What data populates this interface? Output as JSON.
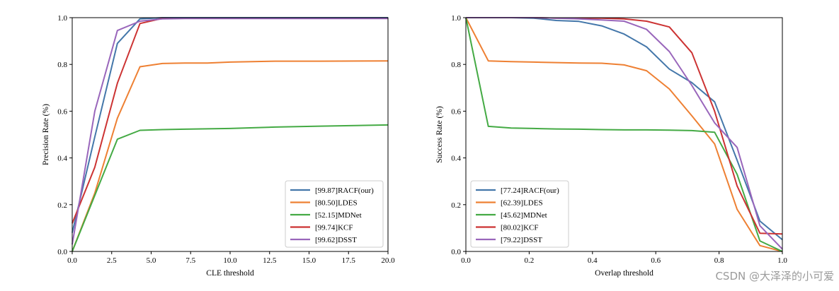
{
  "chart_data": [
    {
      "type": "line",
      "title": "",
      "xlabel": "CLE threshold",
      "ylabel": "Precision Rate (%)",
      "xlim": [
        0,
        20
      ],
      "ylim": [
        0,
        1.0
      ],
      "xticks": [
        "0.0",
        "2.5",
        "5.0",
        "7.5",
        "10.0",
        "12.5",
        "15.0",
        "17.5",
        "20.0"
      ],
      "yticks": [
        "0.0",
        "0.2",
        "0.4",
        "0.6",
        "0.8",
        "1.0"
      ],
      "legend_position": "lower-right",
      "series": [
        {
          "name": "[99.87]RACF(our)",
          "color": "#4477aa",
          "x": [
            0,
            1.43,
            2.86,
            4.29,
            5.71,
            7.14,
            8.57,
            10,
            12.86,
            15.71,
            20
          ],
          "y": [
            0.08,
            0.49,
            0.89,
            0.995,
            1.0,
            1.0,
            1.0,
            1.0,
            1.0,
            1.0,
            1.0
          ]
        },
        {
          "name": "[80.50]LDES",
          "color": "#ee8033",
          "x": [
            0,
            1.43,
            2.86,
            4.29,
            5.71,
            7.14,
            8.57,
            10,
            11.43,
            12.86,
            15.71,
            20
          ],
          "y": [
            0.0,
            0.25,
            0.57,
            0.79,
            0.804,
            0.806,
            0.806,
            0.81,
            0.812,
            0.814,
            0.814,
            0.815
          ]
        },
        {
          "name": "[52.15]MDNet",
          "color": "#44aa44",
          "x": [
            0,
            1.43,
            2.86,
            4.29,
            5.71,
            7.14,
            10,
            12.86,
            15.71,
            20
          ],
          "y": [
            0.0,
            0.24,
            0.48,
            0.518,
            0.521,
            0.523,
            0.526,
            0.532,
            0.536,
            0.541
          ]
        },
        {
          "name": "[99.74]KCF",
          "color": "#cc3333",
          "x": [
            0,
            1.43,
            2.86,
            4.29,
            5.71,
            7.14,
            10,
            20
          ],
          "y": [
            0.12,
            0.36,
            0.72,
            0.975,
            0.997,
            0.998,
            0.998,
            0.998
          ]
        },
        {
          "name": "[99.62]DSST",
          "color": "#9966bb",
          "x": [
            0,
            1.43,
            2.86,
            4.29,
            5.71,
            7.14,
            10,
            20
          ],
          "y": [
            0.03,
            0.6,
            0.945,
            0.985,
            0.995,
            0.996,
            0.996,
            0.996
          ]
        }
      ]
    },
    {
      "type": "line",
      "title": "",
      "xlabel": "Overlap threshold",
      "ylabel": "Success Rate (%)",
      "xlim": [
        0,
        1.0
      ],
      "ylim": [
        0,
        1.0
      ],
      "xticks": [
        "0.0",
        "0.2",
        "0.4",
        "0.6",
        "0.8",
        "1.0"
      ],
      "yticks": [
        "0.0",
        "0.2",
        "0.4",
        "0.6",
        "0.8",
        "1.0"
      ],
      "legend_position": "lower-left",
      "series": [
        {
          "name": "[77.24]RACF(our)",
          "color": "#4477aa",
          "x": [
            0,
            0.071,
            0.143,
            0.214,
            0.286,
            0.357,
            0.429,
            0.5,
            0.571,
            0.643,
            0.714,
            0.786,
            0.857,
            0.929,
            1.0
          ],
          "y": [
            1.0,
            1.0,
            1.0,
            0.998,
            0.988,
            0.984,
            0.965,
            0.93,
            0.875,
            0.78,
            0.722,
            0.64,
            0.39,
            0.13,
            0.05
          ]
        },
        {
          "name": "[62.39]LDES",
          "color": "#ee8033",
          "x": [
            0,
            0.071,
            0.143,
            0.214,
            0.286,
            0.357,
            0.429,
            0.5,
            0.571,
            0.643,
            0.714,
            0.786,
            0.857,
            0.929,
            1.0
          ],
          "y": [
            1.0,
            0.815,
            0.812,
            0.81,
            0.808,
            0.806,
            0.805,
            0.798,
            0.773,
            0.695,
            0.58,
            0.46,
            0.18,
            0.025,
            0.0
          ]
        },
        {
          "name": "[45.62]MDNet",
          "color": "#44aa44",
          "x": [
            0,
            0.071,
            0.143,
            0.214,
            0.286,
            0.357,
            0.429,
            0.5,
            0.571,
            0.643,
            0.714,
            0.786,
            0.857,
            0.929,
            1.0
          ],
          "y": [
            1.0,
            0.535,
            0.528,
            0.526,
            0.524,
            0.523,
            0.521,
            0.52,
            0.52,
            0.519,
            0.517,
            0.51,
            0.33,
            0.045,
            0.0
          ]
        },
        {
          "name": "[80.02]KCF",
          "color": "#cc3333",
          "x": [
            0,
            0.071,
            0.143,
            0.214,
            0.286,
            0.357,
            0.429,
            0.5,
            0.571,
            0.643,
            0.714,
            0.786,
            0.857,
            0.929,
            1.0
          ],
          "y": [
            1.0,
            1.0,
            1.0,
            1.0,
            0.998,
            0.998,
            0.998,
            0.995,
            0.985,
            0.96,
            0.85,
            0.6,
            0.28,
            0.078,
            0.075
          ]
        },
        {
          "name": "[79.22]DSST",
          "color": "#9966bb",
          "x": [
            0,
            0.071,
            0.143,
            0.214,
            0.286,
            0.357,
            0.429,
            0.5,
            0.571,
            0.643,
            0.714,
            0.786,
            0.857,
            0.929,
            1.0
          ],
          "y": [
            1.0,
            1.0,
            1.0,
            1.0,
            0.998,
            0.995,
            0.99,
            0.985,
            0.95,
            0.855,
            0.71,
            0.55,
            0.445,
            0.11,
            0.01
          ]
        }
      ]
    }
  ],
  "watermark": "CSDN @大泽泽的小可爱"
}
